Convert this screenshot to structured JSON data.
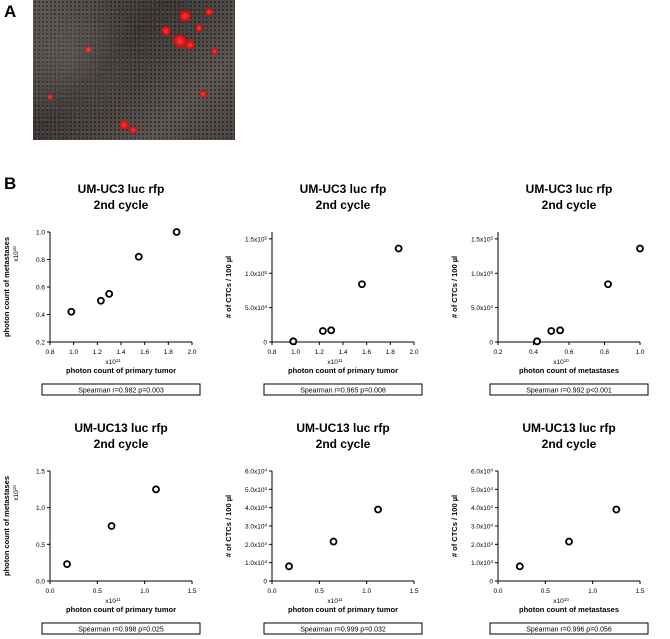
{
  "panel_a_label": "A",
  "panel_b_label": "B",
  "chart_data": [
    {
      "type": "scatter",
      "title": "UM-UC3 luc rfp",
      "subtitle": "2nd cycle",
      "xlabel": "photon count of primary tumor",
      "ylabel": "photon count of metastases",
      "x_multiplier": "x10^11",
      "y_multiplier": "x10^10",
      "xlim": [
        0.8,
        2.0
      ],
      "ylim": [
        0.2,
        1.0
      ],
      "xticks": [
        "0.8",
        "1.0",
        "1.2",
        "1.4",
        "1.6",
        "1.8",
        "2.0"
      ],
      "yticks": [
        "0.2",
        "0.4",
        "0.6",
        "0.8",
        "1.0"
      ],
      "x": [
        0.98,
        1.23,
        1.3,
        1.55,
        1.87
      ],
      "y": [
        0.42,
        0.5,
        0.55,
        0.82,
        1.0
      ],
      "stats": "Spearman r=0.982 p=0.003"
    },
    {
      "type": "scatter",
      "title": "UM-UC3 luc rfp",
      "subtitle": "2nd cycle",
      "xlabel": "photon count of primary tumor",
      "ylabel": "# of CTCs / 100 µl",
      "x_multiplier": "x10^11",
      "xlim": [
        0.8,
        2.0
      ],
      "ylim": [
        0,
        160000
      ],
      "xticks": [
        "0.8",
        "1.0",
        "1.2",
        "1.4",
        "1.6",
        "1.8",
        "2.0"
      ],
      "yticks": [
        "0",
        "5.0x10^4",
        "1.0x10^5",
        "1.5x10^5"
      ],
      "x": [
        0.98,
        1.23,
        1.3,
        1.56,
        1.87
      ],
      "y": [
        1000,
        16000,
        17000,
        84000,
        136000
      ],
      "stats": "Spearman r=0.965 p=0.008"
    },
    {
      "type": "scatter",
      "title": "UM-UC3 luc rfp",
      "subtitle": "2nd cycle",
      "xlabel": "photon count of metastases",
      "ylabel": "# of CTCs / 100 µl",
      "x_multiplier": "x10^10",
      "xlim": [
        0.2,
        1.0
      ],
      "ylim": [
        0,
        160000
      ],
      "xticks": [
        "0.2",
        "0.4",
        "0.6",
        "0.8",
        "1.0"
      ],
      "yticks": [
        "0",
        "5.0x10^4",
        "1.0x10^5",
        "1.5x10^5"
      ],
      "x": [
        0.42,
        0.5,
        0.55,
        0.82,
        1.0
      ],
      "y": [
        1000,
        16000,
        17000,
        84000,
        136000
      ],
      "stats": "Spearman r=0.992 p<0.001"
    },
    {
      "type": "scatter",
      "title": "UM-UC13 luc rfp",
      "subtitle": "2nd cycle",
      "xlabel": "photon count of primary tumor",
      "ylabel": "photon count of metastases",
      "x_multiplier": "x10^11",
      "y_multiplier": "x10^10",
      "xlim": [
        0.0,
        1.5
      ],
      "ylim": [
        0.0,
        1.5
      ],
      "xticks": [
        "0.0",
        "0.5",
        "1.0",
        "1.5"
      ],
      "yticks": [
        "0.0",
        "0.5",
        "1.0",
        "1.5"
      ],
      "x": [
        0.18,
        0.65,
        1.12
      ],
      "y": [
        0.23,
        0.75,
        1.25
      ],
      "stats": "Spearman r=0.998 p=0.025"
    },
    {
      "type": "scatter",
      "title": "UM-UC13 luc rfp",
      "subtitle": "2nd cycle",
      "xlabel": "photon count of primary tumor",
      "ylabel": "# of CTCs / 100 µl",
      "x_multiplier": "x10^11",
      "xlim": [
        0.0,
        1.5
      ],
      "ylim": [
        0,
        60000
      ],
      "xticks": [
        "0.0",
        "0.5",
        "1.0",
        "1.5"
      ],
      "yticks": [
        "0",
        "1.0x10^4",
        "2.0x10^4",
        "3.0x10^4",
        "4.0x10^4",
        "5.0x10^4",
        "6.0x10^4"
      ],
      "x": [
        0.18,
        0.65,
        1.12
      ],
      "y": [
        8000,
        21500,
        39000
      ],
      "stats": "Spearman r=0.999 p=0.032"
    },
    {
      "type": "scatter",
      "title": "UM-UC13 luc rfp",
      "subtitle": "2nd cycle",
      "xlabel": "photon count of metastases",
      "ylabel": "# of CTCs / 100 µl",
      "x_multiplier": "x10^10",
      "xlim": [
        0.0,
        1.5
      ],
      "ylim": [
        0,
        60000
      ],
      "xticks": [
        "0.0",
        "0.5",
        "1.0",
        "1.5"
      ],
      "yticks": [
        "0",
        "1.0x10^4",
        "2.0x10^4",
        "3.0x10^4",
        "4.0x10^4",
        "5.0x10^4",
        "6.0x10^4"
      ],
      "x": [
        0.23,
        0.75,
        1.25
      ],
      "y": [
        8000,
        21500,
        39000
      ],
      "stats": "Spearman r=0.996 p=0.056"
    }
  ]
}
